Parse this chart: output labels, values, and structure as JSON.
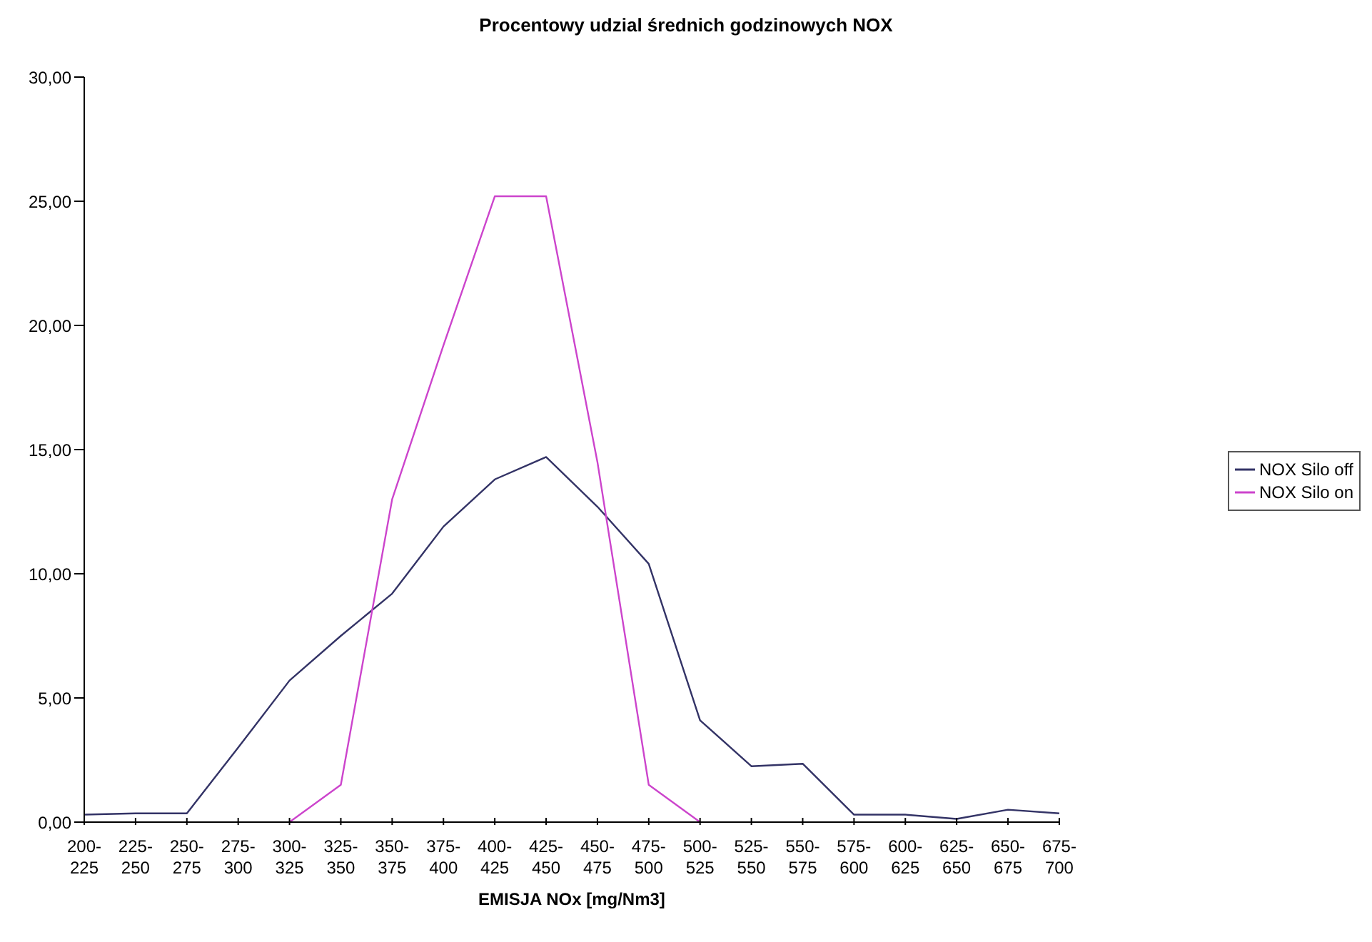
{
  "chart_data": {
    "type": "line",
    "title": "Procentowy udzial średnich godzinowych NOX",
    "xlabel": "EMISJA NOx [mg/Nm3]",
    "categories": [
      "200-225",
      "225-250",
      "250-275",
      "275-300",
      "300-325",
      "325-350",
      "350-375",
      "375-400",
      "400-425",
      "425-450",
      "450-475",
      "475-500",
      "500-525",
      "525-550",
      "550-575",
      "575-600",
      "600-625",
      "625-650",
      "650-675",
      "675-700"
    ],
    "series": [
      {
        "name": "NOX Silo off",
        "color": "#333366",
        "values": [
          0.3,
          0.35,
          0.35,
          3.0,
          5.7,
          7.5,
          9.2,
          11.9,
          13.8,
          14.7,
          12.7,
          10.4,
          4.1,
          2.25,
          2.35,
          0.3,
          0.3,
          0.13,
          0.5,
          0.35
        ]
      },
      {
        "name": "NOX Silo on",
        "color": "#cc44cc",
        "values": [
          null,
          null,
          null,
          null,
          0,
          1.5,
          13.0,
          19.2,
          25.2,
          25.2,
          14.5,
          1.5,
          0,
          null,
          null,
          null,
          null,
          null,
          null,
          null
        ]
      }
    ],
    "ylim": [
      0,
      30
    ],
    "yticks": [
      {
        "value": 0,
        "label": "0,00"
      },
      {
        "value": 5,
        "label": "5,00"
      },
      {
        "value": 10,
        "label": "10,00"
      },
      {
        "value": 15,
        "label": "15,00"
      },
      {
        "value": 20,
        "label": "20,00"
      },
      {
        "value": 25,
        "label": "25,00"
      },
      {
        "value": 30,
        "label": "30,00"
      }
    ],
    "legend": "right",
    "marker": "none",
    "line_style": "solid",
    "grid": false
  }
}
